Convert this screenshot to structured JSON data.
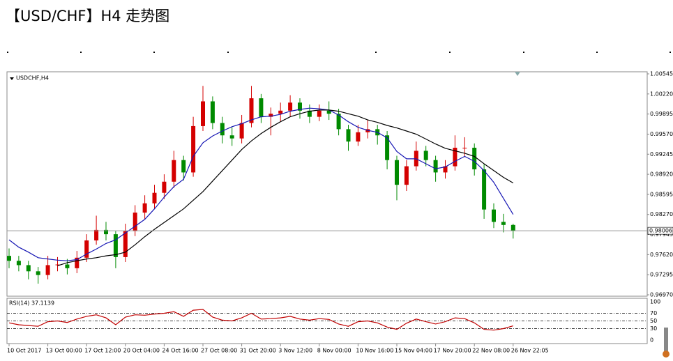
{
  "chart_data": {
    "type": "candlestick",
    "title": "【USD/CHF】H4 走势图",
    "symbol_label": "USDCHF,H4",
    "categories": [
      "10 Oct 2017",
      null,
      null,
      null,
      "13 Oct 00:00",
      null,
      null,
      null,
      "17 Oct 12:00",
      null,
      null,
      null,
      "20 Oct 04:00",
      null,
      null,
      null,
      "24 Oct 16:00",
      null,
      null,
      null,
      "27 Oct 08:00",
      null,
      null,
      null,
      "31 Oct 20:00",
      null,
      null,
      null,
      "3 Nov 12:00",
      null,
      null,
      null,
      "8 Nov 00:00",
      null,
      null,
      null,
      "10 Nov 16:00",
      null,
      null,
      null,
      "15 Nov 04:00",
      null,
      null,
      null,
      "17 Nov 20:00",
      null,
      null,
      null,
      "22 Nov 08:00",
      null,
      null,
      null,
      "26 Nov 22:05"
    ],
    "open": [
      0.976,
      0.9752,
      0.9745,
      0.9735,
      0.9729,
      0.9745,
      0.9746,
      0.974,
      0.9757,
      0.9785,
      0.9802,
      0.9795,
      0.9758,
      0.98,
      0.983,
      0.9845,
      0.9862,
      0.988,
      0.9915,
      0.9895,
      0.997,
      1.001,
      0.9975,
      0.9955,
      0.995,
      0.9975,
      1.0015,
      0.9985,
      0.999,
      0.9995,
      1.0008,
      0.9995,
      0.9985,
      0.9995,
      0.999,
      0.9965,
      0.9945,
      0.996,
      0.9965,
      0.9955,
      0.9915,
      0.9875,
      0.9905,
      0.993,
      0.9915,
      0.9895,
      0.9905,
      0.9935,
      0.9935,
      0.99,
      0.9835,
      0.9815,
      0.981
    ],
    "high": [
      0.9772,
      0.976,
      0.9752,
      0.9742,
      0.976,
      0.9758,
      0.9755,
      0.9768,
      0.9795,
      0.9825,
      0.9815,
      0.98,
      0.9812,
      0.9842,
      0.9858,
      0.9875,
      0.9892,
      0.993,
      0.9922,
      0.9985,
      1.0035,
      1.0018,
      0.9985,
      0.9968,
      0.9988,
      1.0035,
      1.0022,
      1.0,
      1.0008,
      1.002,
      1.0015,
      1.0005,
      1.0005,
      1.001,
      0.9998,
      0.9972,
      0.9972,
      0.998,
      0.9972,
      0.9962,
      0.9922,
      0.9915,
      0.9945,
      0.9938,
      0.9922,
      0.9915,
      0.9955,
      0.9952,
      0.9942,
      0.9908,
      0.9845,
      0.9828,
      0.9812
    ],
    "low": [
      0.974,
      0.9735,
      0.9722,
      0.9715,
      0.9722,
      0.9735,
      0.973,
      0.9732,
      0.975,
      0.9778,
      0.9785,
      0.974,
      0.975,
      0.9792,
      0.982,
      0.9836,
      0.9852,
      0.987,
      0.9882,
      0.9888,
      0.9962,
      0.9965,
      0.9942,
      0.9938,
      0.9942,
      0.9968,
      0.9975,
      0.9955,
      0.9978,
      0.9985,
      0.9982,
      0.9975,
      0.9978,
      0.998,
      0.9955,
      0.993,
      0.9938,
      0.995,
      0.994,
      0.99,
      0.985,
      0.9865,
      0.9898,
      0.9905,
      0.988,
      0.9885,
      0.9898,
      0.992,
      0.989,
      0.982,
      0.9805,
      0.9798,
      0.9788
    ],
    "close": [
      0.9752,
      0.9745,
      0.9735,
      0.9729,
      0.9745,
      0.9746,
      0.974,
      0.9757,
      0.9785,
      0.9802,
      0.9795,
      0.9758,
      0.98,
      0.983,
      0.9845,
      0.9862,
      0.988,
      0.9915,
      0.9895,
      0.997,
      1.001,
      0.9975,
      0.9955,
      0.995,
      0.9975,
      1.0015,
      0.9985,
      0.999,
      0.9995,
      1.0008,
      0.9995,
      0.9985,
      0.9995,
      0.999,
      0.9965,
      0.9945,
      0.996,
      0.9965,
      0.9955,
      0.9915,
      0.9875,
      0.9905,
      0.993,
      0.9915,
      0.9895,
      0.9905,
      0.9935,
      0.9935,
      0.99,
      0.9835,
      0.9815,
      0.981,
      0.98006
    ],
    "up_color": "#d40000",
    "down_color": "#008a00",
    "ma_lines": [
      {
        "color": "#1616b4",
        "values": [
          0.9786,
          0.9774,
          0.9766,
          0.9757,
          0.9755,
          0.9753,
          0.9752,
          0.9754,
          0.9763,
          0.9771,
          0.978,
          0.9786,
          0.9797,
          0.9808,
          0.9819,
          0.9836,
          0.9855,
          0.9872,
          0.9884,
          0.9921,
          0.9943,
          0.9954,
          0.9962,
          0.9969,
          0.9974,
          0.998,
          0.9985,
          0.9986,
          0.9989,
          0.9994,
          0.9997,
          0.9999,
          0.9998,
          0.9996,
          0.9988,
          0.9977,
          0.9968,
          0.9963,
          0.996,
          0.9951,
          0.9929,
          0.9917,
          0.9917,
          0.9909,
          0.9901,
          0.9904,
          0.9913,
          0.9921,
          0.9913,
          0.9898,
          0.9879,
          0.9853,
          0.9827
        ]
      },
      {
        "color": "#000000",
        "values": [
          null,
          null,
          null,
          null,
          null,
          0.9744,
          0.9749,
          0.9752,
          0.9755,
          0.9757,
          0.976,
          0.9762,
          0.9766,
          0.9778,
          0.9791,
          0.9803,
          0.9814,
          0.9825,
          0.9836,
          0.985,
          0.9864,
          0.9881,
          0.9898,
          0.9915,
          0.9932,
          0.9946,
          0.9958,
          0.9968,
          0.9977,
          0.9985,
          0.999,
          0.9994,
          0.9996,
          0.9996,
          0.9994,
          0.999,
          0.9986,
          0.998,
          0.9976,
          0.9971,
          0.9967,
          0.9962,
          0.9957,
          0.9949,
          0.9941,
          0.9934,
          0.993,
          0.9926,
          0.9921,
          0.9909,
          0.9898,
          0.9887,
          0.9878
        ]
      }
    ],
    "ylim": [
      0.9697,
      1.00545
    ],
    "yticks": [
      1.00545,
      {
        "value": 1.0022,
        "label": "1.00220"
      },
      0.99895,
      {
        "value": 0.9957,
        "label": "0.99570"
      },
      0.99245,
      {
        "value": 0.9892,
        "label": "0.98920"
      },
      0.98595,
      {
        "value": 0.9827,
        "label": "0.98270"
      },
      0.97945,
      {
        "value": 0.9762,
        "label": "0.97620"
      },
      0.97295,
      {
        "value": 0.9697,
        "label": "0.96970"
      }
    ],
    "current_price": 0.98006,
    "rsi": {
      "label": "RSI(14) 37.1139",
      "color": "#c00000",
      "ylim": [
        0,
        100
      ],
      "yticks": [
        100,
        70,
        50,
        30,
        0
      ],
      "levels": [
        70,
        50,
        30
      ],
      "values": [
        45,
        40,
        38,
        36,
        48,
        50,
        46,
        55,
        62,
        66,
        58,
        40,
        60,
        66,
        65,
        68,
        70,
        74,
        62,
        78,
        80,
        60,
        52,
        50,
        58,
        70,
        55,
        56,
        58,
        62,
        55,
        52,
        56,
        54,
        42,
        36,
        48,
        50,
        45,
        34,
        28,
        44,
        55,
        48,
        42,
        48,
        58,
        56,
        45,
        28,
        26,
        30,
        37.1139
      ]
    }
  }
}
